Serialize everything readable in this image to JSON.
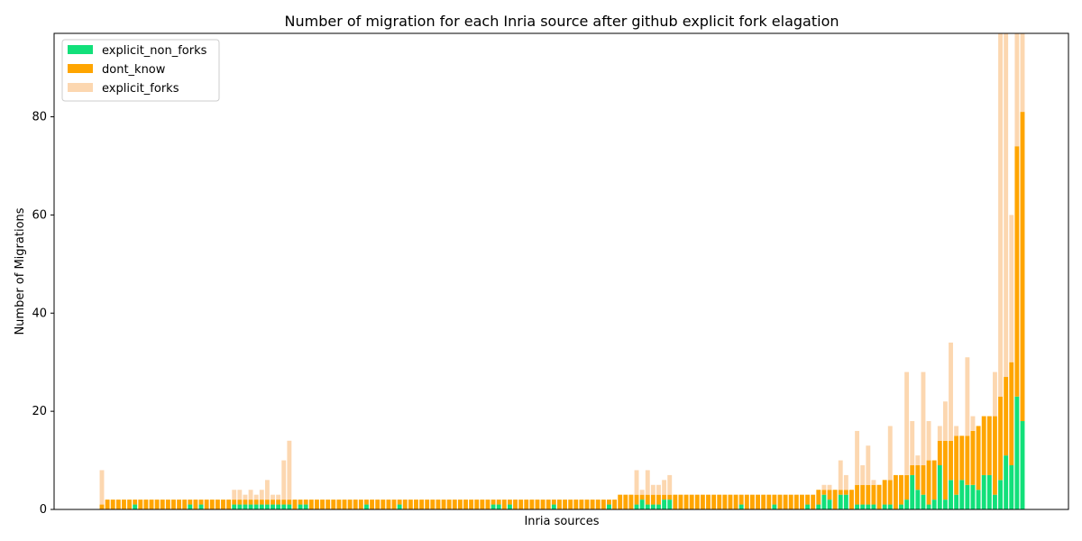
{
  "chart_data": {
    "type": "bar",
    "stacked": true,
    "title": "Number of migration for each Inria source after github explicit fork elagation",
    "xlabel": "Inria sources",
    "ylabel": "Number of Migrations",
    "ylim": [
      0,
      97
    ],
    "yticks": [
      0,
      20,
      40,
      60,
      80
    ],
    "legend_position": "top-left",
    "series": [
      {
        "name": "explicit_non_forks",
        "color": "#12e07a"
      },
      {
        "name": "dont_know",
        "color": "#ffa500"
      },
      {
        "name": "explicit_forks",
        "color": "#fcd7b0"
      }
    ],
    "bars": [
      [
        0,
        1,
        7
      ],
      [
        0,
        2,
        0
      ],
      [
        0,
        2,
        0
      ],
      [
        0,
        2,
        0
      ],
      [
        0,
        2,
        0
      ],
      [
        0,
        2,
        0
      ],
      [
        1,
        1,
        0
      ],
      [
        0,
        2,
        0
      ],
      [
        0,
        2,
        0
      ],
      [
        0,
        2,
        0
      ],
      [
        0,
        2,
        0
      ],
      [
        0,
        2,
        0
      ],
      [
        0,
        2,
        0
      ],
      [
        0,
        2,
        0
      ],
      [
        0,
        2,
        0
      ],
      [
        0,
        2,
        0
      ],
      [
        1,
        1,
        0
      ],
      [
        0,
        2,
        0
      ],
      [
        1,
        1,
        0
      ],
      [
        0,
        2,
        0
      ],
      [
        0,
        2,
        0
      ],
      [
        0,
        2,
        0
      ],
      [
        0,
        2,
        0
      ],
      [
        0,
        2,
        0
      ],
      [
        1,
        1,
        2
      ],
      [
        1,
        1,
        2
      ],
      [
        1,
        1,
        1
      ],
      [
        1,
        1,
        2
      ],
      [
        1,
        1,
        1
      ],
      [
        1,
        1,
        2
      ],
      [
        1,
        1,
        4
      ],
      [
        1,
        1,
        1
      ],
      [
        1,
        1,
        1
      ],
      [
        1,
        1,
        8
      ],
      [
        1,
        1,
        12
      ],
      [
        0,
        2,
        0
      ],
      [
        1,
        1,
        0
      ],
      [
        1,
        1,
        0
      ],
      [
        0,
        2,
        0
      ],
      [
        0,
        2,
        0
      ],
      [
        0,
        2,
        0
      ],
      [
        0,
        2,
        0
      ],
      [
        0,
        2,
        0
      ],
      [
        0,
        2,
        0
      ],
      [
        0,
        2,
        0
      ],
      [
        0,
        2,
        0
      ],
      [
        0,
        2,
        0
      ],
      [
        0,
        2,
        0
      ],
      [
        1,
        1,
        0
      ],
      [
        0,
        2,
        0
      ],
      [
        0,
        2,
        0
      ],
      [
        0,
        2,
        0
      ],
      [
        0,
        2,
        0
      ],
      [
        0,
        2,
        0
      ],
      [
        1,
        1,
        0
      ],
      [
        0,
        2,
        0
      ],
      [
        0,
        2,
        0
      ],
      [
        0,
        2,
        0
      ],
      [
        0,
        2,
        0
      ],
      [
        0,
        2,
        0
      ],
      [
        0,
        2,
        0
      ],
      [
        0,
        2,
        0
      ],
      [
        0,
        2,
        0
      ],
      [
        0,
        2,
        0
      ],
      [
        0,
        2,
        0
      ],
      [
        0,
        2,
        0
      ],
      [
        0,
        2,
        0
      ],
      [
        0,
        2,
        0
      ],
      [
        0,
        2,
        0
      ],
      [
        0,
        2,
        0
      ],
      [
        0,
        2,
        0
      ],
      [
        1,
        1,
        0
      ],
      [
        1,
        1,
        0
      ],
      [
        0,
        2,
        0
      ],
      [
        1,
        1,
        0
      ],
      [
        0,
        2,
        0
      ],
      [
        0,
        2,
        0
      ],
      [
        0,
        2,
        0
      ],
      [
        0,
        2,
        0
      ],
      [
        0,
        2,
        0
      ],
      [
        0,
        2,
        0
      ],
      [
        0,
        2,
        0
      ],
      [
        1,
        1,
        0
      ],
      [
        0,
        2,
        0
      ],
      [
        0,
        2,
        0
      ],
      [
        0,
        2,
        0
      ],
      [
        0,
        2,
        0
      ],
      [
        0,
        2,
        0
      ],
      [
        0,
        2,
        0
      ],
      [
        0,
        2,
        0
      ],
      [
        0,
        2,
        0
      ],
      [
        0,
        2,
        0
      ],
      [
        1,
        1,
        0
      ],
      [
        0,
        2,
        0
      ],
      [
        0,
        3,
        0
      ],
      [
        0,
        3,
        0
      ],
      [
        0,
        3,
        0
      ],
      [
        1,
        2,
        5
      ],
      [
        2,
        1,
        1
      ],
      [
        1,
        2,
        5
      ],
      [
        1,
        2,
        2
      ],
      [
        1,
        2,
        2
      ],
      [
        2,
        1,
        3
      ],
      [
        2,
        1,
        4
      ],
      [
        0,
        3,
        0
      ],
      [
        0,
        3,
        0
      ],
      [
        0,
        3,
        0
      ],
      [
        0,
        3,
        0
      ],
      [
        0,
        3,
        0
      ],
      [
        0,
        3,
        0
      ],
      [
        0,
        3,
        0
      ],
      [
        0,
        3,
        0
      ],
      [
        0,
        3,
        0
      ],
      [
        0,
        3,
        0
      ],
      [
        0,
        3,
        0
      ],
      [
        0,
        3,
        0
      ],
      [
        1,
        2,
        0
      ],
      [
        0,
        3,
        0
      ],
      [
        0,
        3,
        0
      ],
      [
        0,
        3,
        0
      ],
      [
        0,
        3,
        0
      ],
      [
        0,
        3,
        0
      ],
      [
        1,
        2,
        0
      ],
      [
        0,
        3,
        0
      ],
      [
        0,
        3,
        0
      ],
      [
        0,
        3,
        0
      ],
      [
        0,
        3,
        0
      ],
      [
        0,
        3,
        0
      ],
      [
        1,
        2,
        0
      ],
      [
        0,
        3,
        0
      ],
      [
        1,
        3,
        0
      ],
      [
        3,
        1,
        1
      ],
      [
        2,
        2,
        1
      ],
      [
        0,
        4,
        0
      ],
      [
        3,
        1,
        6
      ],
      [
        3,
        1,
        3
      ],
      [
        0,
        4,
        0
      ],
      [
        1,
        4,
        11
      ],
      [
        1,
        4,
        4
      ],
      [
        1,
        4,
        8
      ],
      [
        1,
        4,
        1
      ],
      [
        0,
        5,
        0
      ],
      [
        1,
        5,
        0
      ],
      [
        1,
        5,
        11
      ],
      [
        0,
        7,
        0
      ],
      [
        1,
        6,
        0
      ],
      [
        2,
        5,
        21
      ],
      [
        7,
        2,
        9
      ],
      [
        4,
        5,
        2
      ],
      [
        3,
        6,
        19
      ],
      [
        1,
        9,
        8
      ],
      [
        2,
        8,
        0
      ],
      [
        9,
        5,
        3
      ],
      [
        2,
        12,
        8
      ],
      [
        6,
        8,
        20
      ],
      [
        3,
        12,
        2
      ],
      [
        6,
        9,
        0
      ],
      [
        5,
        10,
        16
      ],
      [
        5,
        11,
        3
      ],
      [
        4,
        13,
        0
      ],
      [
        7,
        12,
        0
      ],
      [
        7,
        12,
        0
      ],
      [
        3,
        16,
        9
      ],
      [
        6,
        17,
        74
      ],
      [
        11,
        16,
        70
      ],
      [
        9,
        21,
        30
      ],
      [
        23,
        51,
        23
      ],
      [
        18,
        63,
        16
      ]
    ]
  }
}
